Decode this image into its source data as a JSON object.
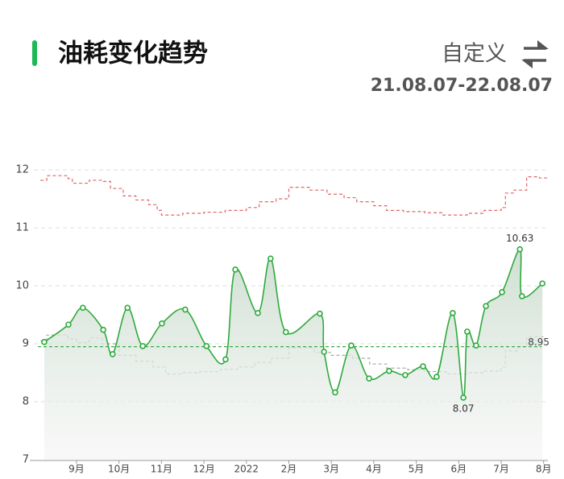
{
  "header": {
    "title": "油耗变化趋势",
    "custom": "自定义",
    "date_range": "21.08.07-22.08.07"
  },
  "chart_data": {
    "type": "line",
    "xlim": [
      -0.1,
      12.1
    ],
    "ylim": [
      7,
      12
    ],
    "yticks": [
      7,
      8,
      9,
      10,
      11,
      12
    ],
    "grid": true,
    "xticks": [
      {
        "value": 1,
        "label": "9月"
      },
      {
        "value": 2,
        "label": "10月"
      },
      {
        "value": 3,
        "label": "11月"
      },
      {
        "value": 4,
        "label": "12月"
      },
      {
        "value": 5,
        "label": "2022"
      },
      {
        "value": 6,
        "label": "2月"
      },
      {
        "value": 7,
        "label": "3月"
      },
      {
        "value": 8,
        "label": "4月"
      },
      {
        "value": 9,
        "label": "5月"
      },
      {
        "value": 10,
        "label": "6月"
      },
      {
        "value": 11,
        "label": "7月"
      },
      {
        "value": 12,
        "label": "8月"
      }
    ],
    "series": [
      {
        "color": "#2eaa3c",
        "style": "smooth",
        "markers": true,
        "x": [
          0.24,
          0.81,
          1.15,
          1.63,
          1.85,
          2.2,
          2.56,
          3.01,
          3.56,
          4.06,
          4.51,
          4.74,
          5.27,
          5.57,
          5.93,
          6.73,
          6.83,
          7.09,
          7.47,
          7.89,
          8.36,
          8.74,
          9.16,
          9.48,
          9.86,
          10.11,
          10.2,
          10.41,
          10.64,
          11.02,
          11.44,
          11.49,
          11.97
        ],
        "values": [
          9.03,
          9.33,
          9.62,
          9.24,
          8.82,
          9.62,
          8.96,
          9.35,
          9.59,
          8.96,
          8.73,
          10.28,
          9.53,
          10.47,
          9.2,
          9.52,
          8.86,
          8.16,
          8.97,
          8.4,
          8.53,
          8.46,
          8.61,
          8.43,
          9.53,
          8.07,
          9.21,
          8.97,
          9.65,
          9.89,
          10.63,
          9.82,
          10.04
        ]
      },
      {
        "color": "#e06666",
        "style": "step",
        "x": [
          0.15,
          0.3,
          0.8,
          0.9,
          1.3,
          1.6,
          1.8,
          2.1,
          2.4,
          2.7,
          2.9,
          3.0,
          3.5,
          4.0,
          4.5,
          5.0,
          5.3,
          5.7,
          6.0,
          6.5,
          6.9,
          7.3,
          7.6,
          8.0,
          8.3,
          8.7,
          9.2,
          9.6,
          10.2,
          10.6,
          11.0,
          11.1,
          11.3,
          11.6,
          11.9,
          12.1
        ],
        "values": [
          11.82,
          11.9,
          11.85,
          11.77,
          11.82,
          11.8,
          11.68,
          11.55,
          11.48,
          11.4,
          11.3,
          11.22,
          11.25,
          11.27,
          11.3,
          11.35,
          11.45,
          11.5,
          11.7,
          11.65,
          11.58,
          11.52,
          11.45,
          11.38,
          11.3,
          11.28,
          11.26,
          11.22,
          11.25,
          11.3,
          11.35,
          11.6,
          11.65,
          11.88,
          11.86,
          11.86
        ]
      },
      {
        "color": "#aaaaaa",
        "style": "step",
        "x": [
          0.15,
          0.3,
          0.8,
          1.0,
          1.3,
          1.6,
          2.0,
          2.4,
          2.8,
          3.1,
          3.5,
          3.9,
          4.4,
          4.8,
          5.2,
          5.6,
          6.0,
          6.6,
          7.0,
          7.5,
          7.9,
          8.3,
          8.8,
          9.2,
          9.7,
          10.2,
          10.6,
          11.0,
          11.1,
          11.4,
          11.6,
          12.0
        ],
        "values": [
          9.05,
          9.15,
          9.08,
          9.02,
          9.1,
          9.0,
          8.8,
          8.7,
          8.6,
          8.48,
          8.5,
          8.52,
          8.56,
          8.6,
          8.68,
          8.75,
          8.93,
          8.85,
          8.8,
          8.75,
          8.65,
          8.58,
          8.55,
          8.52,
          8.48,
          8.5,
          8.53,
          8.6,
          8.88,
          8.95,
          9.12,
          9.1
        ]
      }
    ],
    "average": {
      "value": 8.95,
      "color": "#3aaa48"
    }
  }
}
